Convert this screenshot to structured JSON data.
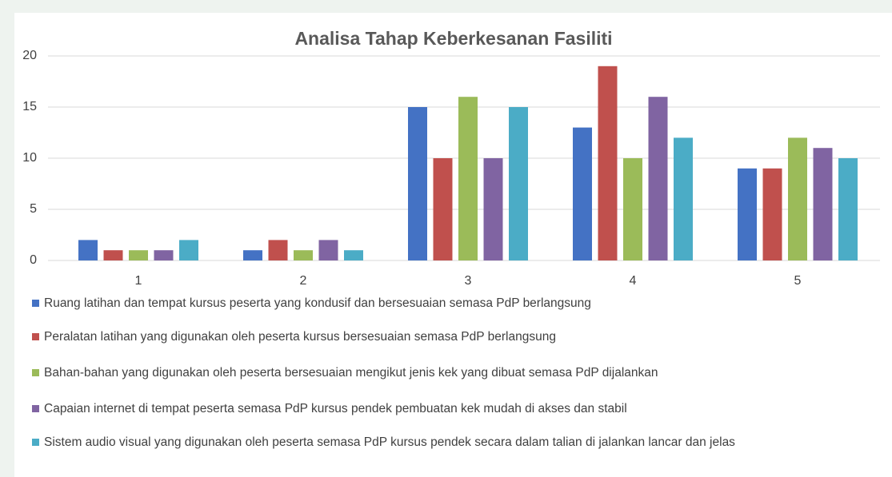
{
  "chart_data": {
    "type": "bar",
    "title": "Analisa Tahap Keberkesanan Fasiliti",
    "categories": [
      "1",
      "2",
      "3",
      "4",
      "5"
    ],
    "series": [
      {
        "name": "Ruang latihan dan tempat kursus peserta yang kondusif dan bersesuaian semasa PdP berlangsung",
        "color": "#4472c4",
        "values": [
          2,
          1,
          15,
          13,
          9
        ]
      },
      {
        "name": "Peralatan latihan yang digunakan oleh peserta kursus bersesuaian semasa PdP berlangsung",
        "color": "#c0504d",
        "values": [
          1,
          2,
          10,
          19,
          9
        ]
      },
      {
        "name": "Bahan-bahan yang digunakan oleh peserta bersesuaian mengikut jenis kek yang dibuat semasa PdP dijalankan",
        "color": "#9bbb59",
        "values": [
          1,
          1,
          16,
          10,
          12
        ]
      },
      {
        "name": "Capaian internet di tempat peserta semasa PdP kursus pendek pembuatan kek mudah di akses dan stabil",
        "color": "#8064a2",
        "values": [
          1,
          2,
          10,
          16,
          11
        ]
      },
      {
        "name": "Sistem audio visual yang digunakan oleh peserta semasa PdP kursus pendek secara dalam talian di jalankan lancar dan jelas",
        "color": "#4bacc6",
        "values": [
          2,
          1,
          15,
          12,
          10
        ]
      }
    ],
    "ylim": [
      0,
      20
    ],
    "yticks": [
      0,
      5,
      10,
      15,
      20
    ],
    "grid": true,
    "legend": "bottom"
  }
}
